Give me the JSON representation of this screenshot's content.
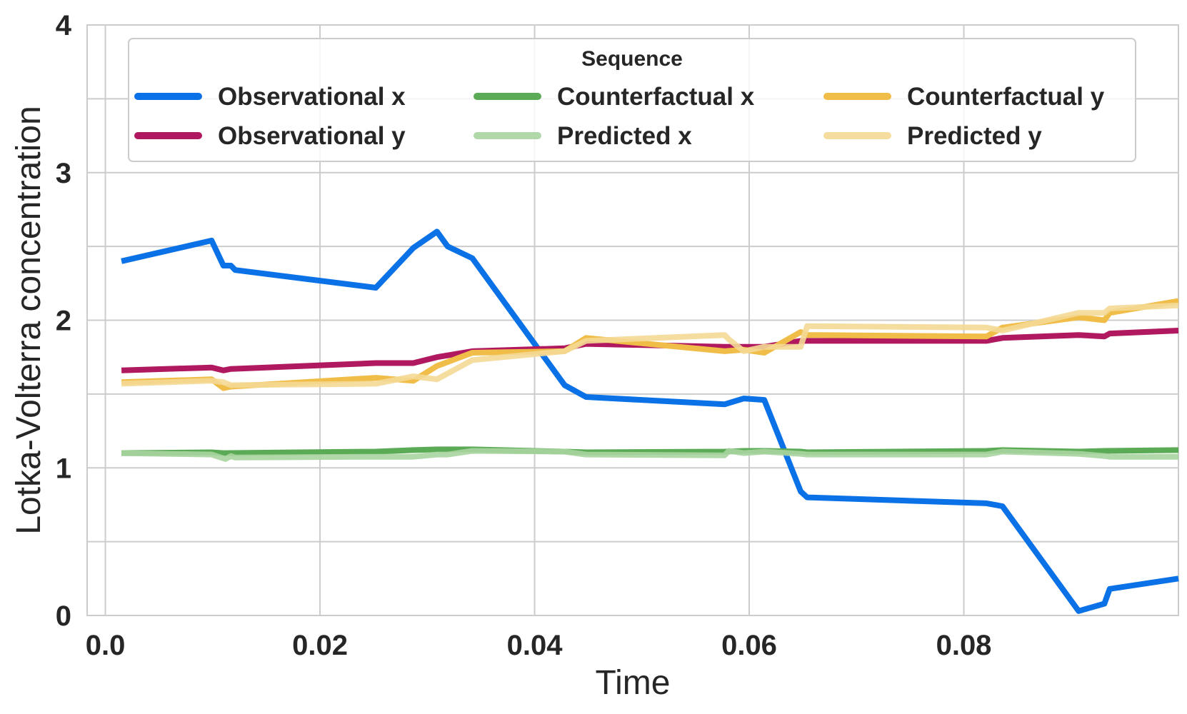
{
  "chart_data": {
    "type": "line",
    "title": "",
    "xlabel": "Time",
    "ylabel": "Lotka-Volterra concentration",
    "xlim": [
      -0.0017,
      0.1
    ],
    "ylim": [
      0,
      4
    ],
    "grid": true,
    "x_ticks": [
      0.0,
      0.02,
      0.04,
      0.06,
      0.08
    ],
    "x_tick_labels": [
      "0.0",
      "0.02",
      "0.04",
      "0.06",
      "0.08"
    ],
    "y_ticks": [
      0,
      0.5,
      1,
      1.5,
      2,
      2.5,
      3,
      3.5,
      4
    ],
    "y_tick_labels": [
      "0",
      "",
      "1",
      "",
      "2",
      "",
      "3",
      "",
      "4"
    ],
    "legend": {
      "title": "Sequence",
      "position": "top",
      "columns": 3
    },
    "series": [
      {
        "name": "Observational x",
        "color": "#0a71e6",
        "width": 8,
        "opacity": 1,
        "x": [
          0.0015,
          0.0099,
          0.011,
          0.0117,
          0.0121,
          0.0252,
          0.0287,
          0.0309,
          0.0319,
          0.0342,
          0.0428,
          0.0448,
          0.0577,
          0.0595,
          0.0614,
          0.0648,
          0.0654,
          0.0821,
          0.0836,
          0.0907,
          0.0931,
          0.0936,
          0.1
        ],
        "y": [
          2.4,
          2.54,
          2.37,
          2.37,
          2.34,
          2.22,
          2.49,
          2.6,
          2.5,
          2.42,
          1.56,
          1.48,
          1.43,
          1.47,
          1.46,
          0.84,
          0.8,
          0.76,
          0.74,
          0.03,
          0.08,
          0.18,
          0.25
        ]
      },
      {
        "name": "Observational y",
        "color": "#b0185f",
        "width": 8,
        "opacity": 1,
        "x": [
          0.0015,
          0.0099,
          0.011,
          0.0117,
          0.0252,
          0.0287,
          0.0309,
          0.0342,
          0.0428,
          0.0448,
          0.0577,
          0.0614,
          0.0648,
          0.0654,
          0.0821,
          0.0836,
          0.0907,
          0.0931,
          0.0936,
          0.1
        ],
        "y": [
          1.66,
          1.68,
          1.66,
          1.67,
          1.71,
          1.71,
          1.75,
          1.79,
          1.81,
          1.84,
          1.82,
          1.82,
          1.86,
          1.86,
          1.86,
          1.88,
          1.9,
          1.89,
          1.91,
          1.93
        ]
      },
      {
        "name": "Counterfactual x",
        "color": "#5bab56",
        "width": 8,
        "opacity": 1,
        "x": [
          0.0015,
          0.0099,
          0.011,
          0.0252,
          0.0287,
          0.0309,
          0.0342,
          0.0428,
          0.0448,
          0.0577,
          0.0595,
          0.0614,
          0.0648,
          0.0654,
          0.0821,
          0.0836,
          0.0907,
          0.0931,
          0.1
        ],
        "y": [
          1.1,
          1.105,
          1.1,
          1.11,
          1.12,
          1.125,
          1.125,
          1.11,
          1.105,
          1.11,
          1.115,
          1.115,
          1.11,
          1.105,
          1.115,
          1.12,
          1.11,
          1.115,
          1.12
        ]
      },
      {
        "name": "Predicted x",
        "color": "#a8d4a0",
        "width": 8,
        "opacity": 0.9,
        "x": [
          0.0015,
          0.0099,
          0.0112,
          0.0117,
          0.0121,
          0.0252,
          0.0287,
          0.0309,
          0.0319,
          0.0342,
          0.0428,
          0.0448,
          0.0577,
          0.0581,
          0.0595,
          0.0614,
          0.0648,
          0.0654,
          0.0821,
          0.0836,
          0.0907,
          0.0931,
          0.0936,
          0.1
        ],
        "y": [
          1.1,
          1.09,
          1.06,
          1.08,
          1.07,
          1.075,
          1.075,
          1.09,
          1.09,
          1.115,
          1.11,
          1.09,
          1.085,
          1.115,
          1.1,
          1.11,
          1.095,
          1.09,
          1.09,
          1.11,
          1.095,
          1.08,
          1.075,
          1.075
        ]
      },
      {
        "name": "Counterfactual y",
        "color": "#f0bd48",
        "width": 8,
        "opacity": 1,
        "x": [
          0.0015,
          0.0099,
          0.011,
          0.0117,
          0.0252,
          0.0287,
          0.0309,
          0.0342,
          0.0428,
          0.0448,
          0.0577,
          0.0595,
          0.0614,
          0.0648,
          0.0654,
          0.0821,
          0.0836,
          0.0907,
          0.0931,
          0.0936,
          0.1
        ],
        "y": [
          1.58,
          1.6,
          1.54,
          1.55,
          1.61,
          1.59,
          1.69,
          1.78,
          1.79,
          1.88,
          1.79,
          1.8,
          1.78,
          1.92,
          1.9,
          1.89,
          1.95,
          2.02,
          2.0,
          2.05,
          2.13
        ]
      },
      {
        "name": "Predicted y",
        "color": "#f4d995",
        "width": 8,
        "opacity": 0.9,
        "x": [
          0.0015,
          0.0099,
          0.011,
          0.0117,
          0.0252,
          0.0287,
          0.0309,
          0.0342,
          0.0428,
          0.0448,
          0.0577,
          0.0581,
          0.0595,
          0.0614,
          0.0648,
          0.0654,
          0.0821,
          0.0836,
          0.0907,
          0.0931,
          0.0936,
          0.1
        ],
        "y": [
          1.57,
          1.59,
          1.58,
          1.56,
          1.57,
          1.62,
          1.6,
          1.73,
          1.79,
          1.86,
          1.9,
          1.87,
          1.79,
          1.82,
          1.82,
          1.96,
          1.95,
          1.93,
          2.05,
          2.05,
          2.08,
          2.1
        ]
      }
    ]
  }
}
